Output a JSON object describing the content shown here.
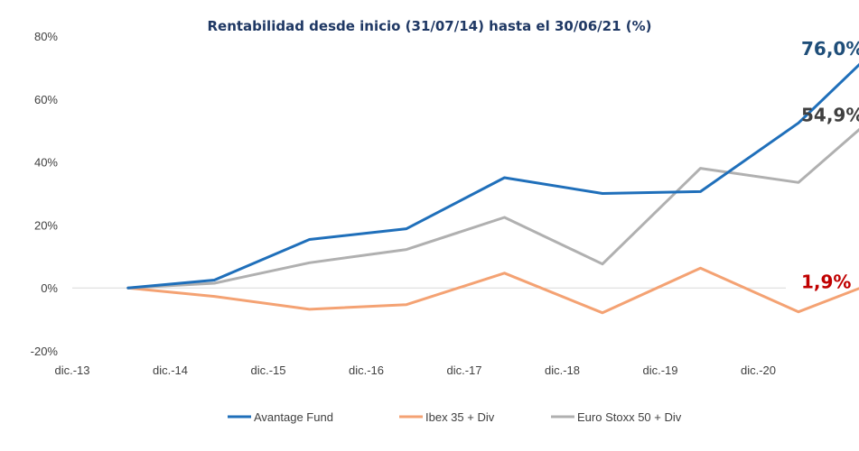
{
  "chart_data": {
    "type": "line",
    "title": "Rentabilidad desde inicio (31/07/14) hasta el 30/06/21 (%)",
    "xlabel": "",
    "ylabel": "",
    "x_ticks": [
      "dic.-13",
      "dic.-14",
      "dic.-15",
      "dic.-16",
      "dic.-17",
      "dic.-18",
      "dic.-19",
      "dic.-20"
    ],
    "x": [
      "jul.-14",
      "dic.-14",
      "dic.-15",
      "dic.-16",
      "dic.-17",
      "dic.-18",
      "dic.-19",
      "dic.-20",
      "jun.-21"
    ],
    "y_ticks": [
      "80%",
      "60%",
      "40%",
      "20%",
      "0%",
      "-20%"
    ],
    "ylim": [
      -20,
      80
    ],
    "grid": false,
    "legend_position": "bottom",
    "series": [
      {
        "name": "Avantage Fund",
        "color": "#1f6fba",
        "values": [
          0,
          2.5,
          15.4,
          18.8,
          35.0,
          30.0,
          30.6,
          52.4,
          76.0
        ],
        "end_label": "76,0%",
        "end_label_color": "#1f4e79"
      },
      {
        "name": "Ibex 35 + Div",
        "color": "#f4a273",
        "values": [
          0,
          -2.7,
          -6.8,
          -5.3,
          4.7,
          -7.9,
          6.3,
          -7.6,
          1.9
        ],
        "end_label": "1,9%",
        "end_label_color": "#c00000"
      },
      {
        "name": "Euro Stoxx 50 + Div",
        "color": "#b0b0b0",
        "values": [
          0,
          1.5,
          8.0,
          12.2,
          22.4,
          7.6,
          38.0,
          33.5,
          54.9
        ],
        "end_label": "54,9%",
        "end_label_color": "#404040"
      }
    ]
  }
}
